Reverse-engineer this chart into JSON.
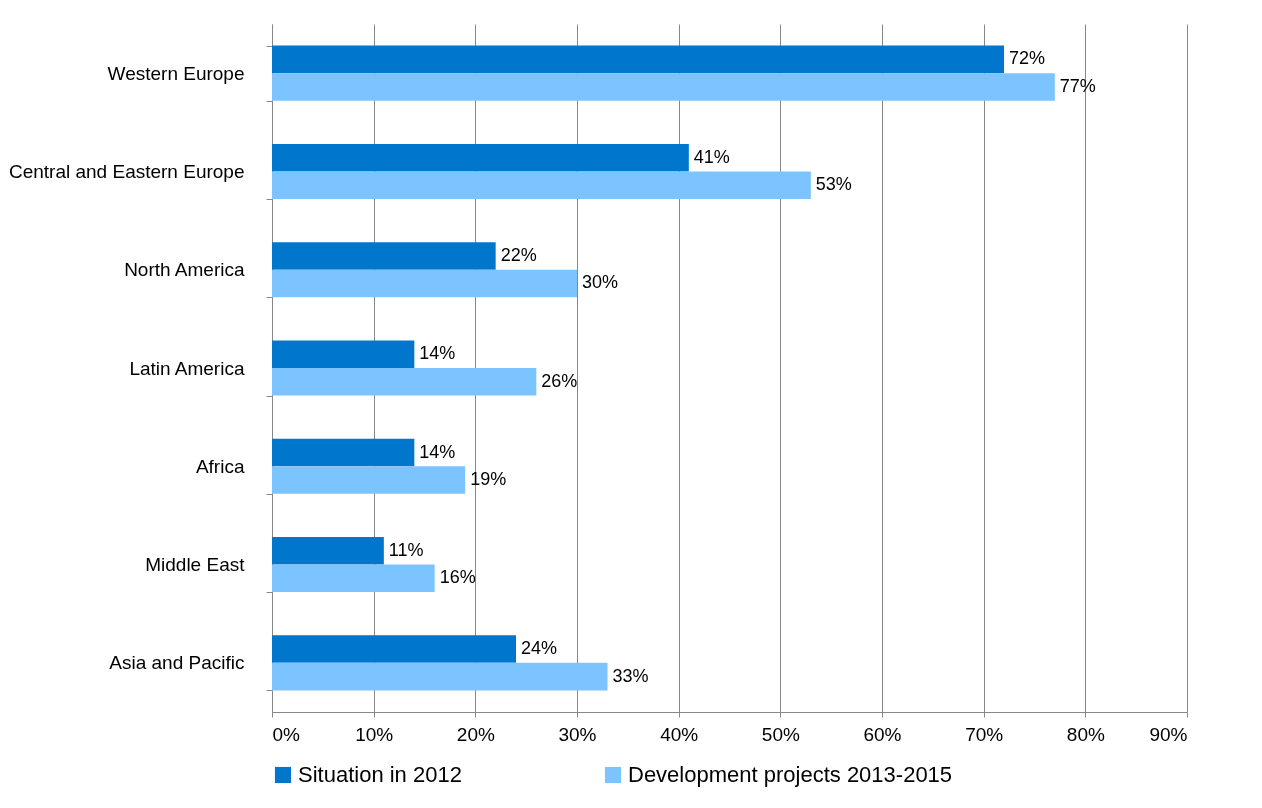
{
  "chart_data": {
    "type": "bar",
    "orientation": "horizontal",
    "categories": [
      "Western Europe",
      "Central and Eastern Europe",
      "North America",
      "Latin America",
      "Africa",
      "Middle East",
      "Asia and Pacific"
    ],
    "series": [
      {
        "name": "Situation in 2012",
        "color": "#0077cc",
        "values": [
          72,
          41,
          22,
          14,
          14,
          11,
          24
        ],
        "value_labels": [
          "72%",
          "41%",
          "22%",
          "14%",
          "14%",
          "11%",
          "24%"
        ]
      },
      {
        "name": "Development projects 2013-2015",
        "color": "#7cc4ff",
        "values": [
          77,
          53,
          30,
          26,
          19,
          16,
          33
        ],
        "value_labels": [
          "77%",
          "53%",
          "30%",
          "26%",
          "19%",
          "16%",
          "33%"
        ]
      }
    ],
    "xlim": [
      0,
      90
    ],
    "xticks": [
      {
        "value": 0,
        "label": "0%"
      },
      {
        "value": 10,
        "label": "10%"
      },
      {
        "value": 20,
        "label": "20%"
      },
      {
        "value": 30,
        "label": "30%"
      },
      {
        "value": 40,
        "label": "40%"
      },
      {
        "value": 50,
        "label": "50%"
      },
      {
        "value": 60,
        "label": "60%"
      },
      {
        "value": 70,
        "label": "70%"
      },
      {
        "value": 80,
        "label": "80%"
      },
      {
        "value": 90,
        "label": "90%"
      }
    ],
    "grid": "x",
    "legend": "bottom"
  }
}
